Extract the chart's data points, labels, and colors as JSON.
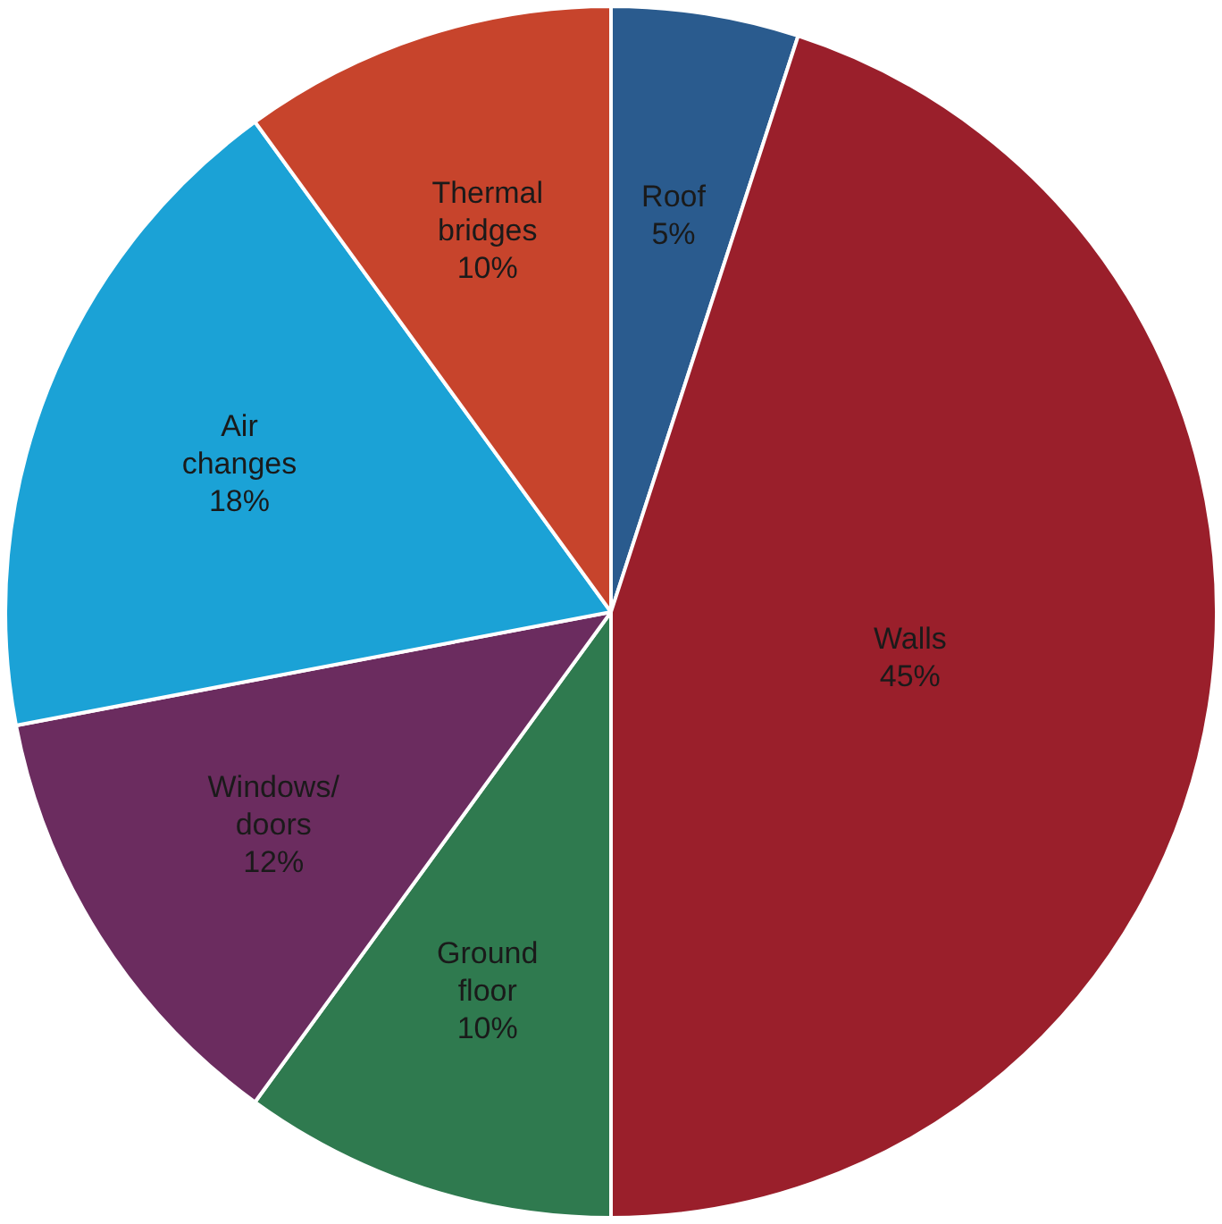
{
  "chart_data": {
    "type": "pie",
    "categories": [
      "Roof",
      "Walls",
      "Ground floor",
      "Windows/doors",
      "Air changes",
      "Thermal bridges"
    ],
    "values": [
      5,
      45,
      10,
      12,
      18,
      10
    ],
    "colors": [
      "#2a5b8e",
      "#9a1f2b",
      "#2f7a4f",
      "#6b2c5f",
      "#1ba2d6",
      "#c7442c"
    ],
    "value_labels": [
      "5%",
      "45%",
      "10%",
      "12%",
      "18%",
      "10%"
    ],
    "legend": false
  }
}
